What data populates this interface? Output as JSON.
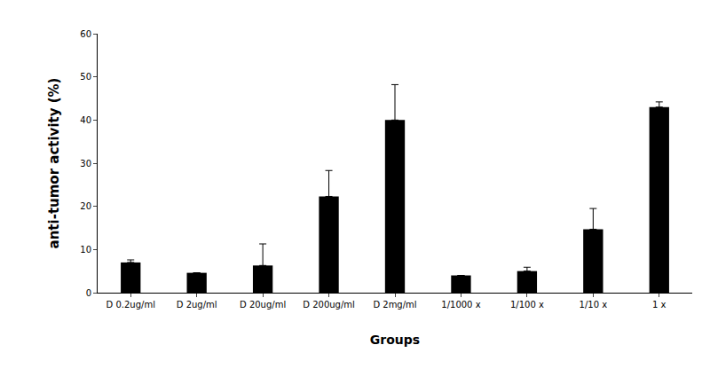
{
  "chart_data": {
    "type": "bar",
    "x_label": "Groups",
    "y_label": "anti-tumor activity (%)",
    "categories": [
      "D 0.2ug/ml",
      "D 2ug/ml",
      "D 20ug/ml",
      "D 200ug/ml",
      "D 2mg/ml",
      "1/1000 x",
      "1/100 x",
      "1/10 x",
      "1 x"
    ],
    "values": [
      7,
      4.6,
      6.3,
      22.3,
      40,
      4,
      5,
      14.7,
      43
    ],
    "errors": [
      0.6,
      0,
      5,
      6,
      8.2,
      0,
      0.9,
      4.8,
      1.2
    ],
    "color": "#000000",
    "ylim": [
      0,
      60
    ],
    "yticks": [
      0,
      10,
      20,
      30,
      40,
      50,
      60
    ],
    "grid": false
  }
}
